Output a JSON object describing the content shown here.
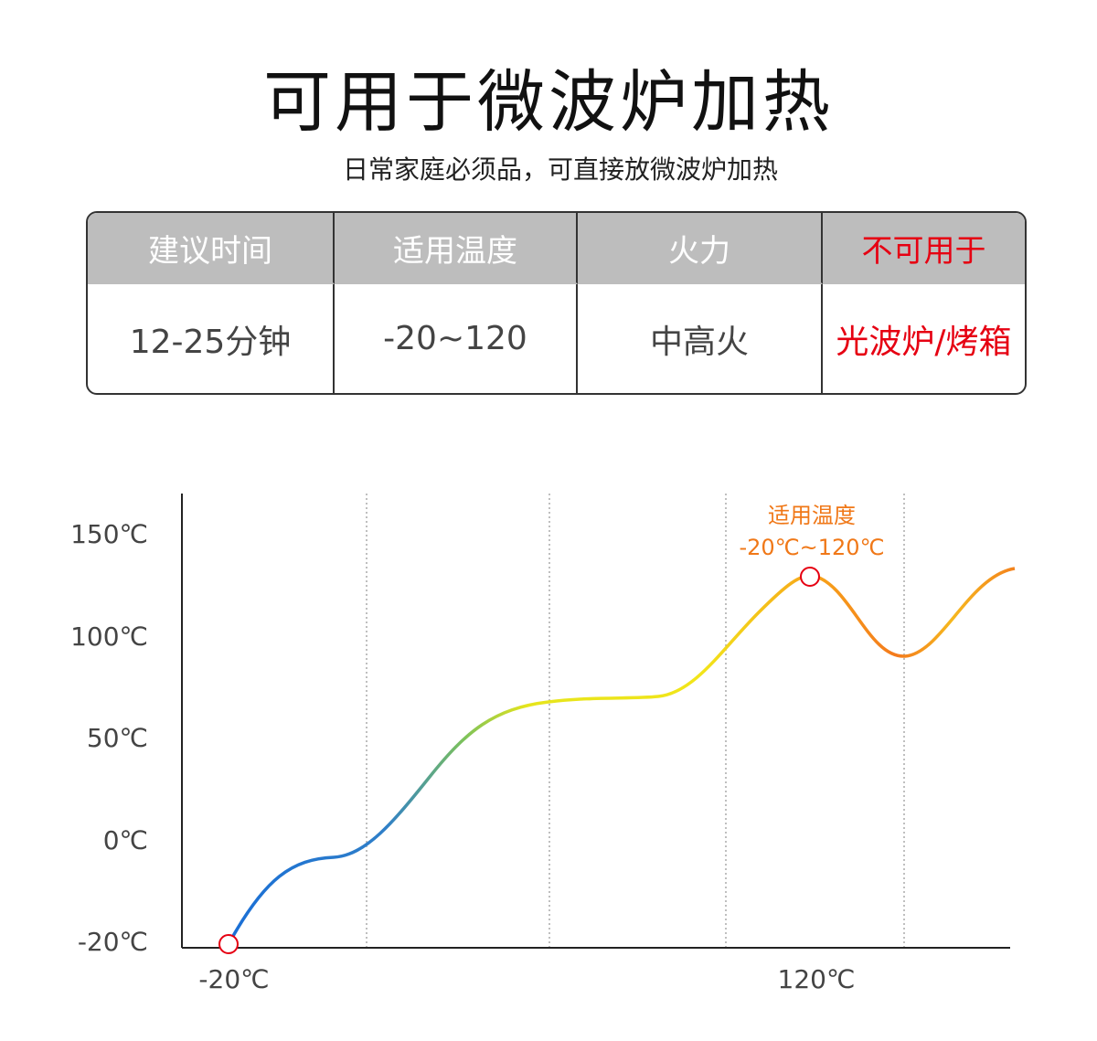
{
  "header": {
    "title": "可用于微波炉加热",
    "subtitle": "日常家庭必须品，可直接放微波炉加热"
  },
  "table": {
    "headers": [
      "建议时间",
      "适用温度",
      "火力",
      "不可用于"
    ],
    "rows": [
      [
        "12-25分钟",
        "-20~120",
        "中高火",
        "光波炉/烤箱"
      ]
    ]
  },
  "diagram": {
    "y_labels": [
      "150℃",
      "100℃",
      "50℃",
      "0℃",
      "-20℃"
    ],
    "x_labels": [
      "-20℃",
      "120℃"
    ],
    "annotation": {
      "title": "适用温度",
      "range": "-20℃~120℃"
    }
  }
}
